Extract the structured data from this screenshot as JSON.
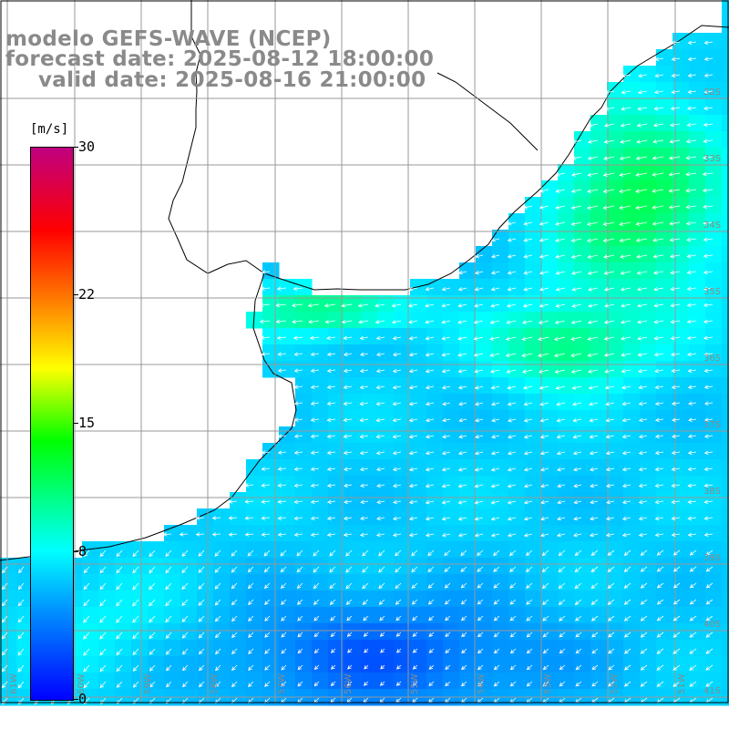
{
  "header": {
    "model": "modelo GEFS-WAVE (NCEP)",
    "forecast": "forecast date: 2025-08-12 18:00:00",
    "valid": "valid date: 2025-08-16 21:00:00"
  },
  "colorbar": {
    "unit": "[m/s]",
    "min": 0,
    "max": 30,
    "ticks": [
      "30",
      "22",
      "15",
      "8",
      "0"
    ],
    "tick_values": [
      30,
      22,
      15,
      8,
      0
    ],
    "colors": [
      "#0000ff",
      "#0090ff",
      "#00ffff",
      "#00ff80",
      "#00ff00",
      "#ffff00",
      "#ff8000",
      "#ff0000",
      "#c00080"
    ]
  },
  "map": {
    "lat_labels": [
      "32S",
      "33S",
      "34S",
      "35S",
      "36S",
      "37S",
      "38S",
      "39S",
      "40S",
      "41S"
    ],
    "lon_labels": [
      "61W",
      "60W",
      "59W",
      "58W",
      "57W",
      "56W",
      "55W",
      "54W",
      "53W",
      "52W",
      "51W"
    ],
    "land_color": "#ffffff",
    "grid_color": "#999999",
    "arrow_color": "#ffffff"
  }
}
